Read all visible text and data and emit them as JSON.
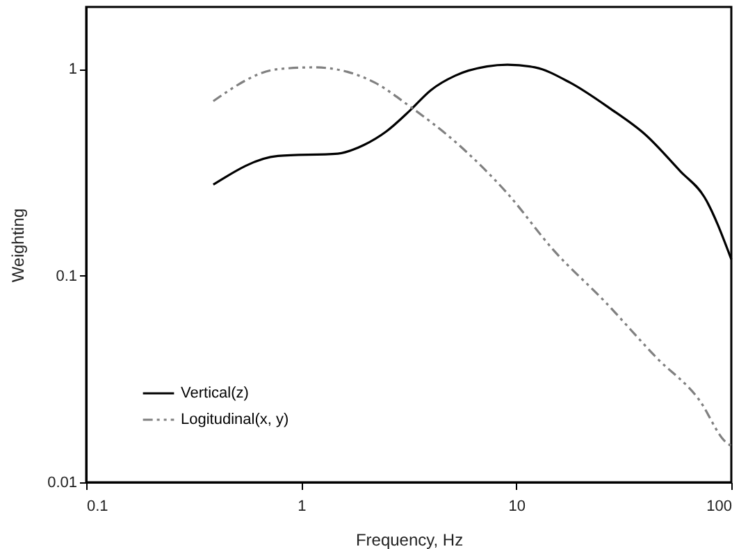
{
  "chart_data": {
    "type": "line",
    "xlabel": "Frequency, Hz",
    "ylabel": "Weighting",
    "log": "xy",
    "xlim": [
      0.1,
      100
    ],
    "xticks": [
      0.1,
      1,
      10,
      100
    ],
    "ylim": [
      0.01,
      2
    ],
    "yticks": [
      0.01,
      0.1,
      1
    ],
    "grid": false,
    "legend": "bottom left",
    "series": [
      {
        "name": "Vertical(z)",
        "color": "#000000",
        "line_style": "solid",
        "x": [
          0.39,
          0.78,
          1.48,
          1.96,
          2.49,
          3.2,
          4.0,
          5.2,
          7.3,
          9.1,
          12.2,
          17.8,
          27,
          40,
          58,
          75,
          100
        ],
        "values": [
          0.276,
          0.38,
          0.39,
          0.43,
          0.5,
          0.63,
          0.79,
          0.93,
          1.03,
          1.05,
          1.02,
          0.86,
          0.65,
          0.48,
          0.32,
          0.24,
          0.12
        ]
      },
      {
        "name": "Logitudinal(x, y)",
        "color": "#808080",
        "line_style": "dashed",
        "x": [
          0.39,
          0.78,
          1.15,
          1.64,
          2.2,
          3.2,
          5.4,
          9.1,
          14.9,
          25.8,
          45,
          71,
          94,
          100
        ],
        "values": [
          0.7,
          1.0,
          1.02,
          0.97,
          0.86,
          0.66,
          0.43,
          0.25,
          0.133,
          0.075,
          0.04,
          0.025,
          0.0157,
          0.015
        ]
      }
    ]
  }
}
